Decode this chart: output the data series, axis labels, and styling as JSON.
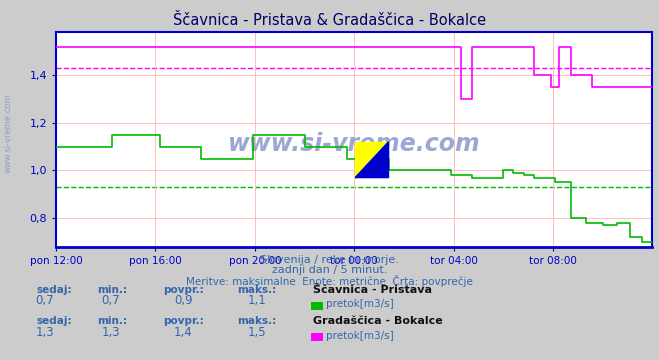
{
  "title": "Ščavnica - Pristava & Gradaščica - Bokalce",
  "bg_color": "#cccccc",
  "plot_bg_color": "#ffffff",
  "grid_color": "#ffbbbb",
  "title_color": "#000066",
  "axis_color": "#0000cc",
  "text_color": "#3366aa",
  "xlabel_ticks": [
    "pon 12:00",
    "pon 16:00",
    "pon 20:00",
    "tor 00:00",
    "tor 04:00",
    "tor 08:00"
  ],
  "ylim": [
    0.68,
    1.58
  ],
  "yticks": [
    0.8,
    1.0,
    1.2,
    1.4
  ],
  "n_points": 288,
  "green_avg": 0.93,
  "magenta_avg": 1.43,
  "green_line_color": "#00bb00",
  "magenta_line_color": "#ff00ff",
  "watermark_color": "#8899cc",
  "subtitle1": "Slovenija / reke in morje.",
  "subtitle2": "zadnji dan / 5 minut.",
  "subtitle3": "Meritve: maksimalne  Enote: metrične  Črta: povprečje",
  "label1_title": "Ščavnica - Pristava",
  "label2_title": "Gradaščica - Bokalce",
  "sedaj1": "0,7",
  "min1": "0,7",
  "povpr1": "0,9",
  "maks1": "1,1",
  "sedaj2": "1,3",
  "min2": "1,3",
  "povpr2": "1,4",
  "maks2": "1,5",
  "green_data": [
    1.1,
    1.1,
    1.1,
    1.15,
    1.15,
    1.1,
    1.1,
    1.05,
    1.05,
    1.15,
    1.15,
    1.1,
    1.1,
    1.05,
    1.05,
    1.0,
    1.0,
    1.0,
    0.98,
    0.97,
    0.97,
    1.0,
    0.99,
    0.98,
    0.97,
    0.95,
    0.8,
    0.78,
    0.77,
    0.78,
    0.72,
    0.7,
    0.7
  ],
  "green_seg": [
    0,
    9,
    18,
    27,
    36,
    50,
    60,
    70,
    80,
    95,
    110,
    120,
    130,
    140,
    150,
    160,
    170,
    180,
    190,
    200,
    205,
    215,
    220,
    225,
    230,
    240,
    248,
    255,
    263,
    270,
    276,
    282,
    288
  ],
  "magenta_data": [
    1.52,
    1.52,
    1.52,
    1.52,
    1.52,
    1.52,
    1.52,
    1.52,
    1.52,
    1.52,
    1.52,
    1.52,
    1.52,
    1.52,
    1.52,
    1.52,
    1.52,
    1.52,
    1.52,
    1.52,
    1.3,
    1.52,
    1.52,
    1.52,
    1.52,
    1.4,
    1.35,
    1.52,
    1.4,
    1.35,
    1.35
  ],
  "magenta_seg": [
    0,
    10,
    20,
    30,
    40,
    50,
    60,
    70,
    80,
    90,
    100,
    110,
    120,
    130,
    140,
    155,
    165,
    175,
    185,
    190,
    195,
    200,
    210,
    218,
    222,
    230,
    238,
    242,
    248,
    258,
    288
  ]
}
